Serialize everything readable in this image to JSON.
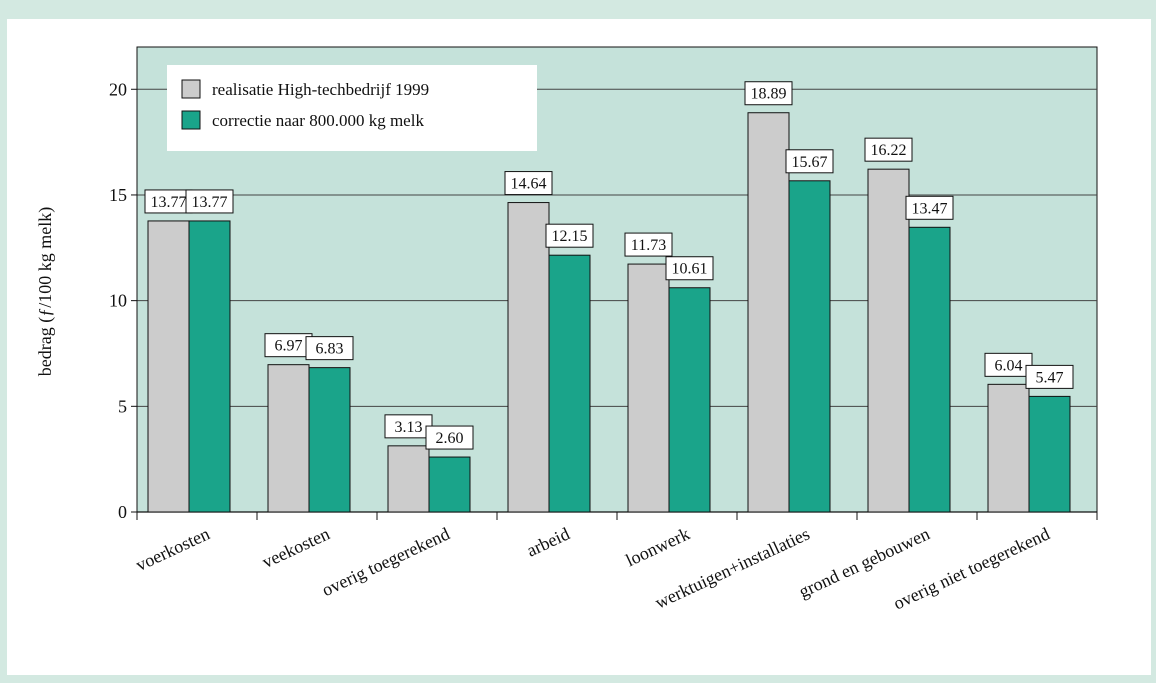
{
  "chart_data": {
    "type": "bar",
    "categories": [
      "voerkosten",
      "veekosten",
      "overig toegerekend",
      "arbeid",
      "loonwerk",
      "werktuigen+installaties",
      "grond en gebouwen",
      "overig niet toegerekend"
    ],
    "series": [
      {
        "name": "realisatie High-techbedrijf 1999",
        "values": [
          13.77,
          6.97,
          3.13,
          14.64,
          11.73,
          18.89,
          16.22,
          6.04
        ],
        "color": "#cccccc"
      },
      {
        "name": "correctie naar 800.000 kg melk",
        "values": [
          13.77,
          6.83,
          2.6,
          12.15,
          10.61,
          15.67,
          13.47,
          5.47
        ],
        "color": "#1aa48a"
      }
    ],
    "value_labels": [
      [
        "13.77",
        "6.97",
        "3.13",
        "14.64",
        "11.73",
        "18.89",
        "16.22",
        "6.04"
      ],
      [
        "13.77",
        "6.83",
        "2.60",
        "12.15",
        "10.61",
        "15.67",
        "13.47",
        "5.47"
      ]
    ],
    "xlabel": "",
    "ylabel": "bedrag (ƒ/100 kg melk)",
    "ylim": [
      0,
      22
    ],
    "yticks": [
      0,
      5,
      10,
      15,
      20
    ],
    "grid": true,
    "legend_position": "top-left",
    "plot_background": "#c5e2da",
    "gridline_color": "#444444"
  }
}
